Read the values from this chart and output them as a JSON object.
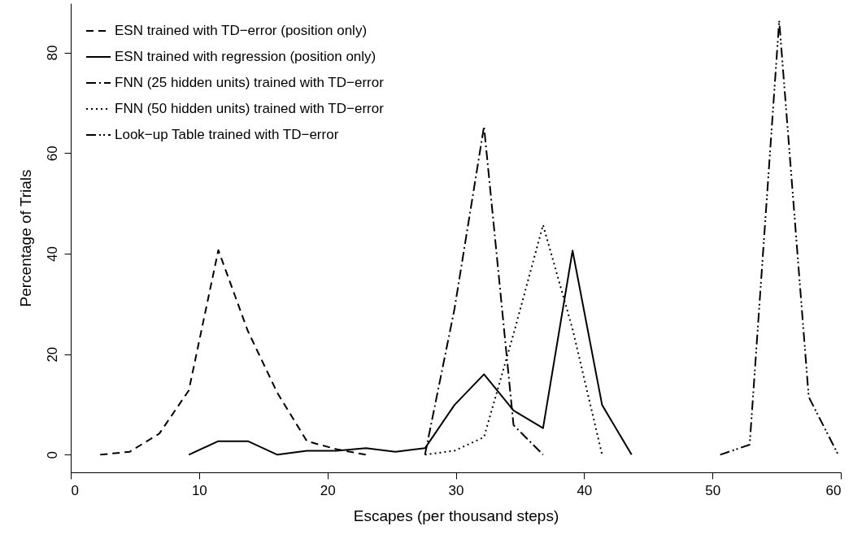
{
  "chart_data": {
    "type": "line",
    "xlabel": "Escapes (per thousand steps)",
    "ylabel": "Percentage of Trials",
    "xlim": [
      0,
      60
    ],
    "xticks": [
      0,
      10,
      20,
      30,
      40,
      50,
      60
    ],
    "ylim": [
      -3.5,
      89.8
    ],
    "yticks": [
      0,
      20,
      40,
      60,
      80
    ],
    "grid": false,
    "legend": "top left",
    "series": [
      {
        "name": "ESN trained with TD−error (position only)",
        "color": "#000000",
        "line_style": "dashed",
        "x": [
          2.3,
          4.6,
          6.9,
          9.2,
          11.5,
          13.8,
          16.1,
          18.4,
          20.7,
          23.0
        ],
        "values": [
          0,
          0.6,
          4.2,
          12.8,
          40.7,
          24.6,
          12.3,
          2.7,
          1.1,
          0
        ]
      },
      {
        "name": "ESN trained with regression (position only)",
        "color": "#000000",
        "line_style": "solid",
        "x": [
          9.2,
          11.5,
          13.8,
          16.1,
          18.4,
          20.7,
          23.0,
          25.3,
          27.6,
          29.9,
          32.2,
          34.5,
          36.8,
          39.1,
          41.4,
          43.7
        ],
        "values": [
          0,
          2.7,
          2.7,
          0,
          0.8,
          0.8,
          1.3,
          0.6,
          1.3,
          9.9,
          16,
          8.8,
          5.3,
          40.6,
          9.9,
          0
        ]
      },
      {
        "name": "FNN (25 hidden units) trained with TD−error",
        "color": "#000000",
        "line_style": "dashdot",
        "x": [
          27.6,
          29.9,
          32.2,
          34.5,
          36.8
        ],
        "values": [
          0,
          29,
          65.3,
          5.9,
          0
        ]
      },
      {
        "name": "FNN (50 hidden units) trained with TD−error",
        "color": "#000000",
        "line_style": "dotted",
        "x": [
          27.6,
          29.9,
          32.2,
          34.5,
          36.8,
          39.1,
          41.4
        ],
        "values": [
          0,
          0.8,
          3.5,
          24,
          45.7,
          25,
          0
        ]
      },
      {
        "name": "Look−up Table trained with TD−error",
        "color": "#000000",
        "line_style": "dashdotdot",
        "x": [
          50.6,
          52.9,
          55.2,
          57.5,
          59.8
        ],
        "values": [
          0,
          2,
          86.3,
          11.5,
          0
        ]
      }
    ]
  }
}
